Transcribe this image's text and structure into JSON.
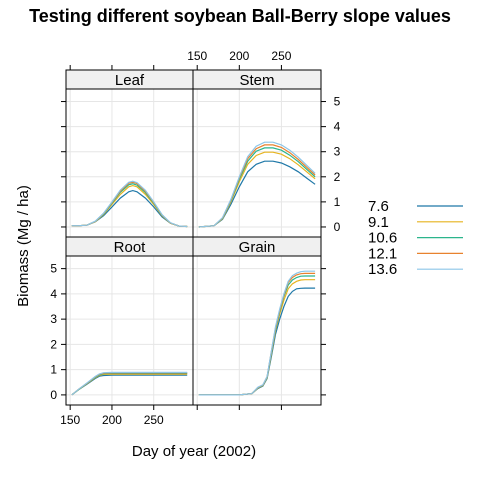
{
  "chart_data": {
    "type": "line",
    "title": "Testing different soybean Ball-Berry slope values",
    "xlabel": "Day of year (2002)",
    "ylabel": "Biomass (Mg / ha)",
    "xlim": [
      145,
      297
    ],
    "ylim": [
      -0.4,
      5.5
    ],
    "x_ticks": [
      150,
      200,
      250
    ],
    "y_ticks": [
      0,
      1,
      2,
      3,
      4,
      5
    ],
    "grid": true,
    "legend_position": "right",
    "legend": [
      {
        "label": "7.6",
        "color": "#1f78a8"
      },
      {
        "label": "9.1",
        "color": "#e6b31e"
      },
      {
        "label": "10.6",
        "color": "#2bb58c"
      },
      {
        "label": "12.1",
        "color": "#e8822e"
      },
      {
        "label": "13.6",
        "color": "#8cc5e8"
      }
    ],
    "panels": [
      {
        "name": "Root",
        "x": [
          152,
          160,
          170,
          180,
          185,
          190,
          200,
          220,
          240,
          260,
          290
        ],
        "series": [
          {
            "name": "7.6",
            "values": [
              0.0,
              0.2,
              0.42,
              0.65,
              0.74,
              0.77,
              0.78,
              0.78,
              0.78,
              0.78,
              0.78
            ]
          },
          {
            "name": "9.1",
            "values": [
              0.0,
              0.21,
              0.44,
              0.68,
              0.78,
              0.81,
              0.82,
              0.82,
              0.82,
              0.82,
              0.82
            ]
          },
          {
            "name": "10.6",
            "values": [
              0.0,
              0.21,
              0.45,
              0.7,
              0.8,
              0.84,
              0.85,
              0.85,
              0.85,
              0.85,
              0.85
            ]
          },
          {
            "name": "12.1",
            "values": [
              0.0,
              0.22,
              0.46,
              0.72,
              0.82,
              0.86,
              0.87,
              0.87,
              0.87,
              0.87,
              0.87
            ]
          },
          {
            "name": "13.6",
            "values": [
              0.0,
              0.22,
              0.47,
              0.73,
              0.83,
              0.88,
              0.89,
              0.89,
              0.89,
              0.89,
              0.89
            ]
          }
        ]
      },
      {
        "name": "Grain",
        "x": [
          152,
          200,
          215,
          222,
          228,
          233,
          238,
          243,
          248,
          253,
          258,
          263,
          268,
          273,
          278,
          290
        ],
        "series": [
          {
            "name": "7.6",
            "values": [
              0,
              0,
              0.05,
              0.25,
              0.35,
              0.65,
              1.5,
              2.4,
              3.0,
              3.5,
              3.9,
              4.1,
              4.2,
              4.22,
              4.23,
              4.23
            ]
          },
          {
            "name": "9.1",
            "values": [
              0,
              0,
              0.05,
              0.27,
              0.37,
              0.68,
              1.6,
              2.55,
              3.2,
              3.75,
              4.2,
              4.4,
              4.5,
              4.55,
              4.56,
              4.56
            ]
          },
          {
            "name": "10.6",
            "values": [
              0,
              0,
              0.05,
              0.28,
              0.38,
              0.7,
              1.65,
              2.6,
              3.3,
              3.9,
              4.35,
              4.55,
              4.65,
              4.7,
              4.71,
              4.71
            ]
          },
          {
            "name": "12.1",
            "values": [
              0,
              0,
              0.05,
              0.29,
              0.39,
              0.72,
              1.7,
              2.65,
              3.35,
              3.95,
              4.45,
              4.65,
              4.75,
              4.8,
              4.81,
              4.81
            ]
          },
          {
            "name": "13.6",
            "values": [
              0,
              0,
              0.05,
              0.3,
              0.4,
              0.73,
              1.72,
              2.7,
              3.4,
              4.0,
              4.5,
              4.72,
              4.82,
              4.88,
              4.9,
              4.9
            ]
          }
        ]
      },
      {
        "name": "Leaf",
        "x": [
          152,
          160,
          170,
          180,
          190,
          200,
          210,
          220,
          225,
          230,
          240,
          250,
          260,
          270,
          280,
          290
        ],
        "series": [
          {
            "name": "7.6",
            "values": [
              0.05,
              0.05,
              0.07,
              0.2,
              0.45,
              0.8,
              1.15,
              1.4,
              1.45,
              1.4,
              1.15,
              0.8,
              0.4,
              0.15,
              0.04,
              0.02
            ]
          },
          {
            "name": "9.1",
            "values": [
              0.05,
              0.05,
              0.07,
              0.21,
              0.5,
              0.9,
              1.3,
              1.6,
              1.65,
              1.6,
              1.3,
              0.9,
              0.45,
              0.15,
              0.04,
              0.02
            ]
          },
          {
            "name": "10.6",
            "values": [
              0.05,
              0.05,
              0.07,
              0.22,
              0.52,
              0.95,
              1.38,
              1.68,
              1.72,
              1.67,
              1.37,
              0.95,
              0.47,
              0.16,
              0.04,
              0.02
            ]
          },
          {
            "name": "12.1",
            "values": [
              0.05,
              0.05,
              0.07,
              0.22,
              0.54,
              0.98,
              1.43,
              1.74,
              1.78,
              1.73,
              1.42,
              0.98,
              0.48,
              0.16,
              0.04,
              0.02
            ]
          },
          {
            "name": "13.6",
            "values": [
              0.05,
              0.05,
              0.07,
              0.23,
              0.55,
              1.0,
              1.47,
              1.78,
              1.82,
              1.77,
              1.46,
              1.0,
              0.49,
              0.17,
              0.04,
              0.02
            ]
          }
        ]
      },
      {
        "name": "Stem",
        "x": [
          152,
          170,
          180,
          190,
          200,
          210,
          220,
          230,
          240,
          250,
          260,
          270,
          280,
          290
        ],
        "series": [
          {
            "name": "7.6",
            "values": [
              0.0,
              0.05,
              0.3,
              0.9,
              1.6,
              2.2,
              2.5,
              2.62,
              2.62,
              2.55,
              2.4,
              2.2,
              1.95,
              1.7
            ]
          },
          {
            "name": "9.1",
            "values": [
              0.0,
              0.05,
              0.33,
              1.0,
              1.8,
              2.5,
              2.85,
              2.98,
              2.98,
              2.9,
              2.72,
              2.48,
              2.2,
              1.92
            ]
          },
          {
            "name": "10.6",
            "values": [
              0.0,
              0.05,
              0.35,
              1.05,
              1.9,
              2.62,
              3.02,
              3.15,
              3.15,
              3.06,
              2.86,
              2.6,
              2.3,
              2.0
            ]
          },
          {
            "name": "12.1",
            "values": [
              0.0,
              0.05,
              0.36,
              1.08,
              1.96,
              2.72,
              3.12,
              3.27,
              3.27,
              3.17,
              2.96,
              2.69,
              2.38,
              2.07
            ]
          },
          {
            "name": "13.6",
            "values": [
              0.0,
              0.05,
              0.37,
              1.1,
              2.0,
              2.8,
              3.22,
              3.38,
              3.38,
              3.27,
              3.06,
              2.78,
              2.46,
              2.14
            ]
          }
        ]
      }
    ]
  }
}
